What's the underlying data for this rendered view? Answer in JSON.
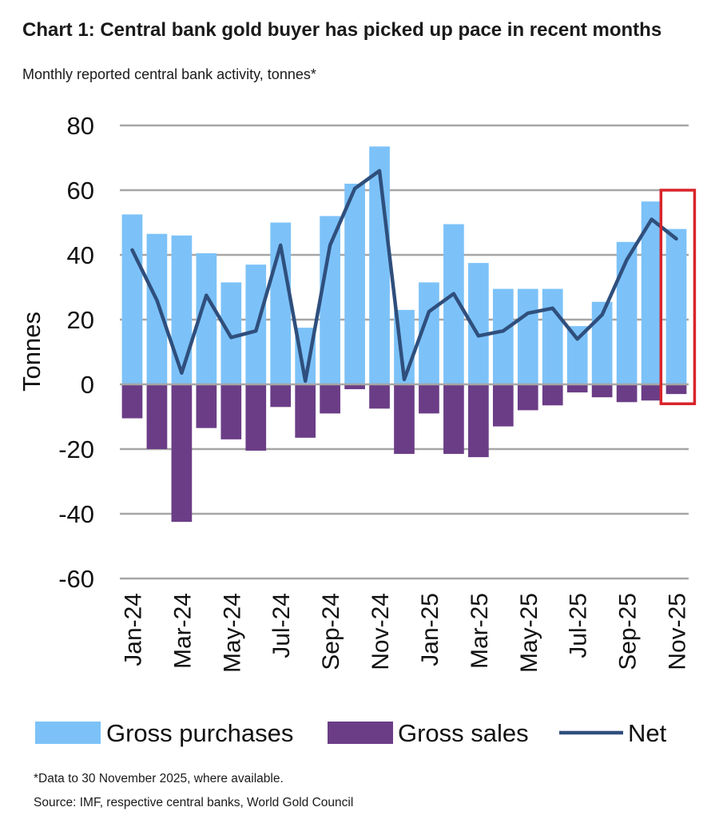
{
  "title": "Chart 1: Central bank gold buyer has picked up pace in recent months",
  "subtitle": "Monthly reported central bank activity, tonnes*",
  "footnote": "*Data to 30 November 2025, where available.",
  "source": "Source: IMF, respective central banks, World Gold Council",
  "colors": {
    "purchases": "#7cc2f8",
    "sales": "#6b3d87",
    "net": "#2f4f7d",
    "highlight": "#d9232a",
    "grid": "#a6a6a6"
  },
  "chart_data": {
    "type": "bar",
    "title": "Chart 1: Central bank gold buyer has picked up pace in recent months",
    "ylabel": "Tonnes",
    "xlabel": "",
    "ylim": [
      -60,
      80
    ],
    "yticks": [
      80,
      60,
      40,
      20,
      0,
      -20,
      -40,
      -60
    ],
    "legend_position": "bottom",
    "categories": [
      "Jan-24",
      "Feb-24",
      "Mar-24",
      "Apr-24",
      "May-24",
      "Jun-24",
      "Jul-24",
      "Aug-24",
      "Sep-24",
      "Oct-24",
      "Nov-24",
      "Dec-24",
      "Jan-25",
      "Feb-25",
      "Mar-25",
      "Apr-25",
      "May-25",
      "Jun-25",
      "Jul-25",
      "Aug-25",
      "Sep-25",
      "Oct-25",
      "Nov-25"
    ],
    "tick_labels": [
      "Jan-24",
      "Mar-24",
      "May-24",
      "Jul-24",
      "Sep-24",
      "Nov-24",
      "Jan-25",
      "Mar-25",
      "May-25",
      "Jul-25",
      "Sep-25",
      "Nov-25"
    ],
    "series": [
      {
        "name": "Gross purchases",
        "kind": "bar",
        "values": [
          52.5,
          46.5,
          46,
          40.5,
          31.5,
          37,
          50,
          17.5,
          52,
          62,
          73.5,
          23,
          31.5,
          49.5,
          37.5,
          29.5,
          29.5,
          29.5,
          18,
          25.5,
          44,
          56.5,
          48
        ]
      },
      {
        "name": "Gross sales",
        "kind": "bar",
        "values": [
          -10.5,
          -20,
          -42.5,
          -13.5,
          -17,
          -20.5,
          -7,
          -16.5,
          -9,
          -1.5,
          -7.5,
          -21.5,
          -9,
          -21.5,
          -22.5,
          -13,
          -8,
          -6.5,
          -2.5,
          -4,
          -5.5,
          -5,
          -3
        ]
      },
      {
        "name": "Net",
        "kind": "line",
        "values": [
          41.5,
          26,
          3.5,
          27.5,
          14.5,
          16.5,
          43,
          1,
          43,
          60.5,
          66,
          1.5,
          22.5,
          28,
          15,
          16.5,
          22,
          23.5,
          14,
          21.5,
          38.5,
          51,
          45
        ]
      }
    ],
    "highlight_category": "Nov-25"
  }
}
